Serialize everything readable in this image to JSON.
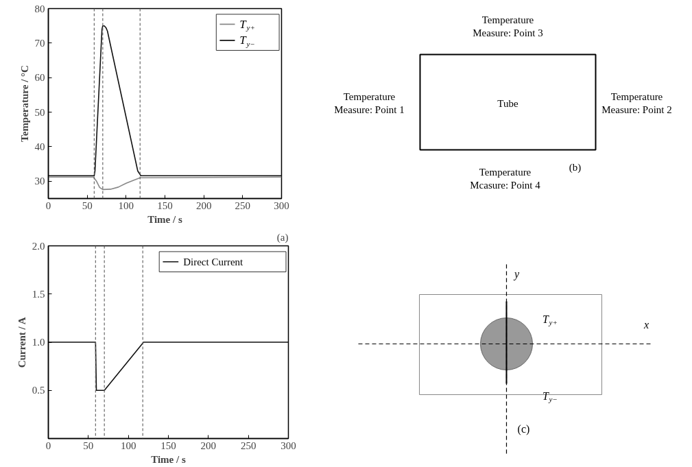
{
  "chart_data": [
    {
      "type": "line",
      "xlabel": "Time / s",
      "ylabel": "Temperature / °C",
      "xlim": [
        0,
        300
      ],
      "xticks": [
        0,
        50,
        100,
        150,
        200,
        250,
        300
      ],
      "ylim": [
        25,
        80
      ],
      "yticks": [
        30,
        40,
        50,
        60,
        70,
        80
      ],
      "legend": "top right",
      "series": [
        {
          "name": "T$_{y+}$",
          "color": "#888888",
          "x": [
            0,
            58,
            62,
            66,
            70,
            80,
            90,
            100,
            110,
            118,
            300
          ],
          "values": [
            31.2,
            31.2,
            30,
            28.2,
            27.6,
            27.7,
            28.3,
            29.4,
            30.3,
            31,
            31.2
          ]
        },
        {
          "name": "T$_{y−}$",
          "color": "#111111",
          "x": [
            0,
            59,
            60,
            69,
            70,
            72,
            74,
            76,
            115,
            117,
            119,
            300
          ],
          "values": [
            31.6,
            31.6,
            33,
            74,
            75,
            75,
            74.5,
            73.5,
            33,
            32.3,
            31.6,
            31.6
          ]
        }
      ],
      "ref_lines": [
        {
          "axis": "x",
          "value": 59,
          "color": "#666666",
          "line_style": "dashed"
        },
        {
          "axis": "x",
          "value": 70,
          "color": "#666666",
          "line_style": "dashed"
        },
        {
          "axis": "x",
          "value": 118,
          "color": "#666666",
          "line_style": "dashed"
        }
      ]
    },
    {
      "type": "line",
      "xlabel": "Time / s",
      "ylabel": "Current / A",
      "xlim": [
        0,
        300
      ],
      "xticks": [
        0,
        50,
        100,
        150,
        200,
        250,
        300
      ],
      "ylim": [
        0,
        2.0
      ],
      "yticks": [
        {
          "value": 0.5,
          "label": "0.5"
        },
        {
          "value": 1.0,
          "label": "1.0"
        },
        {
          "value": 1.5,
          "label": "1.5"
        },
        {
          "value": 2.0,
          "label": "2.0"
        }
      ],
      "legend": "top right",
      "series": [
        {
          "name": "Direct Current",
          "color": "#111111",
          "x": [
            0,
            59,
            60,
            70,
            119,
            300
          ],
          "values": [
            1,
            1,
            0.5,
            0.5,
            1,
            1
          ]
        }
      ],
      "ref_lines": [
        {
          "axis": "x",
          "value": 59,
          "color": "#666666",
          "line_style": "dashed"
        },
        {
          "axis": "x",
          "value": 70,
          "color": "#666666",
          "line_style": "dashed"
        },
        {
          "axis": "x",
          "value": 118,
          "color": "#666666",
          "line_style": "dashed"
        }
      ],
      "annotations": [
        "(a)"
      ]
    },
    {
      "type": "other",
      "annotations": [
        "Temperature\nMeasure: Point 3",
        "Temperature\nMeasure: Point 1",
        "Tube",
        "Temperature\nMeasure: Point 2",
        "Temperature\nMcasure: Point 4",
        "(b)"
      ]
    },
    {
      "type": "other",
      "annotations": [
        "y",
        "x",
        "T$_{y+}$",
        "T$_{y−}$",
        "(c)"
      ]
    }
  ]
}
